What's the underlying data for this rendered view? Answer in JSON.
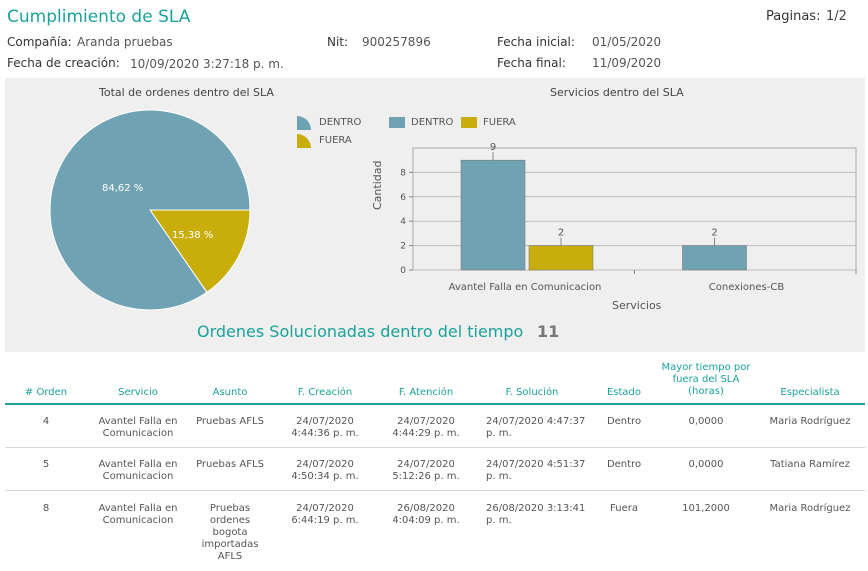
{
  "header": {
    "title": "Cumplimiento de SLA",
    "pages_label": "Paginas:",
    "pages_value": "1/2",
    "company_label": "Compañía:",
    "company_value": "Aranda pruebas",
    "nit_label": "Nit:",
    "nit_value": "900257896",
    "start_label": "Fecha inicial:",
    "start_value": "01/05/2020",
    "created_label": "Fecha de creación:",
    "created_value": "10/09/2020 3:27:18 p. m.",
    "end_label": "Fecha final:",
    "end_value": "11/09/2020"
  },
  "colors": {
    "dentro": "#6fa2b3",
    "fuera": "#c9ad0a",
    "accent": "#1aa29a"
  },
  "chart_data": [
    {
      "type": "pie",
      "title": "Total de ordenes dentro del SLA",
      "categories": [
        "DENTRO",
        "FUERA"
      ],
      "values": [
        84.62,
        15.38
      ],
      "labels": [
        "84,62 %",
        "15,38 %"
      ],
      "legend": "right"
    },
    {
      "type": "bar",
      "title": "Servicios dentro del SLA",
      "categories": [
        "Avantel Falla en Comunicacion",
        "Conexiones-CB"
      ],
      "series": [
        {
          "name": "DENTRO",
          "values": [
            9,
            2
          ]
        },
        {
          "name": "FUERA",
          "values": [
            2,
            null
          ]
        }
      ],
      "xlabel": "Servicios",
      "ylabel": "Cantidad",
      "ylim": [
        0,
        10
      ],
      "yticks": [
        "0",
        "2",
        "4",
        "6",
        "8"
      ],
      "grid": true,
      "legend": "top"
    }
  ],
  "summary": {
    "label": "Ordenes Solucionadas dentro del tiempo",
    "value": "11"
  },
  "table": {
    "headers": [
      "# Orden",
      "Servicio",
      "Asunto",
      "F. Creación",
      "F. Atención",
      "F. Solución",
      "Estado",
      "Mayor tiempo por fuera del SLA (horas)",
      "Especialista"
    ],
    "rows": [
      [
        "4",
        "Avantel Falla en Comunicacion",
        "Pruebas AFLS",
        "24/07/2020 4:44:36 p. m.",
        "24/07/2020 4:44:29 p. m.",
        "24/07/2020 4:47:37 p. m.",
        "Dentro",
        "0,0000",
        "Maria Rodríguez"
      ],
      [
        "5",
        "Avantel Falla en Comunicacion",
        "Pruebas AFLS",
        "24/07/2020 4:50:34 p. m.",
        "24/07/2020 5:12:26 p. m.",
        "24/07/2020 4:51:37 p. m.",
        "Dentro",
        "0,0000",
        "Tatiana Ramírez"
      ],
      [
        "8",
        "Avantel Falla en Comunicacion",
        "Pruebas ordenes bogota importadas AFLS",
        "24/07/2020 6:44:19 p. m.",
        "26/08/2020 4:04:09 p. m.",
        "26/08/2020 3:13:41 p. m.",
        "Fuera",
        "101,2000",
        "Maria Rodríguez"
      ]
    ]
  }
}
